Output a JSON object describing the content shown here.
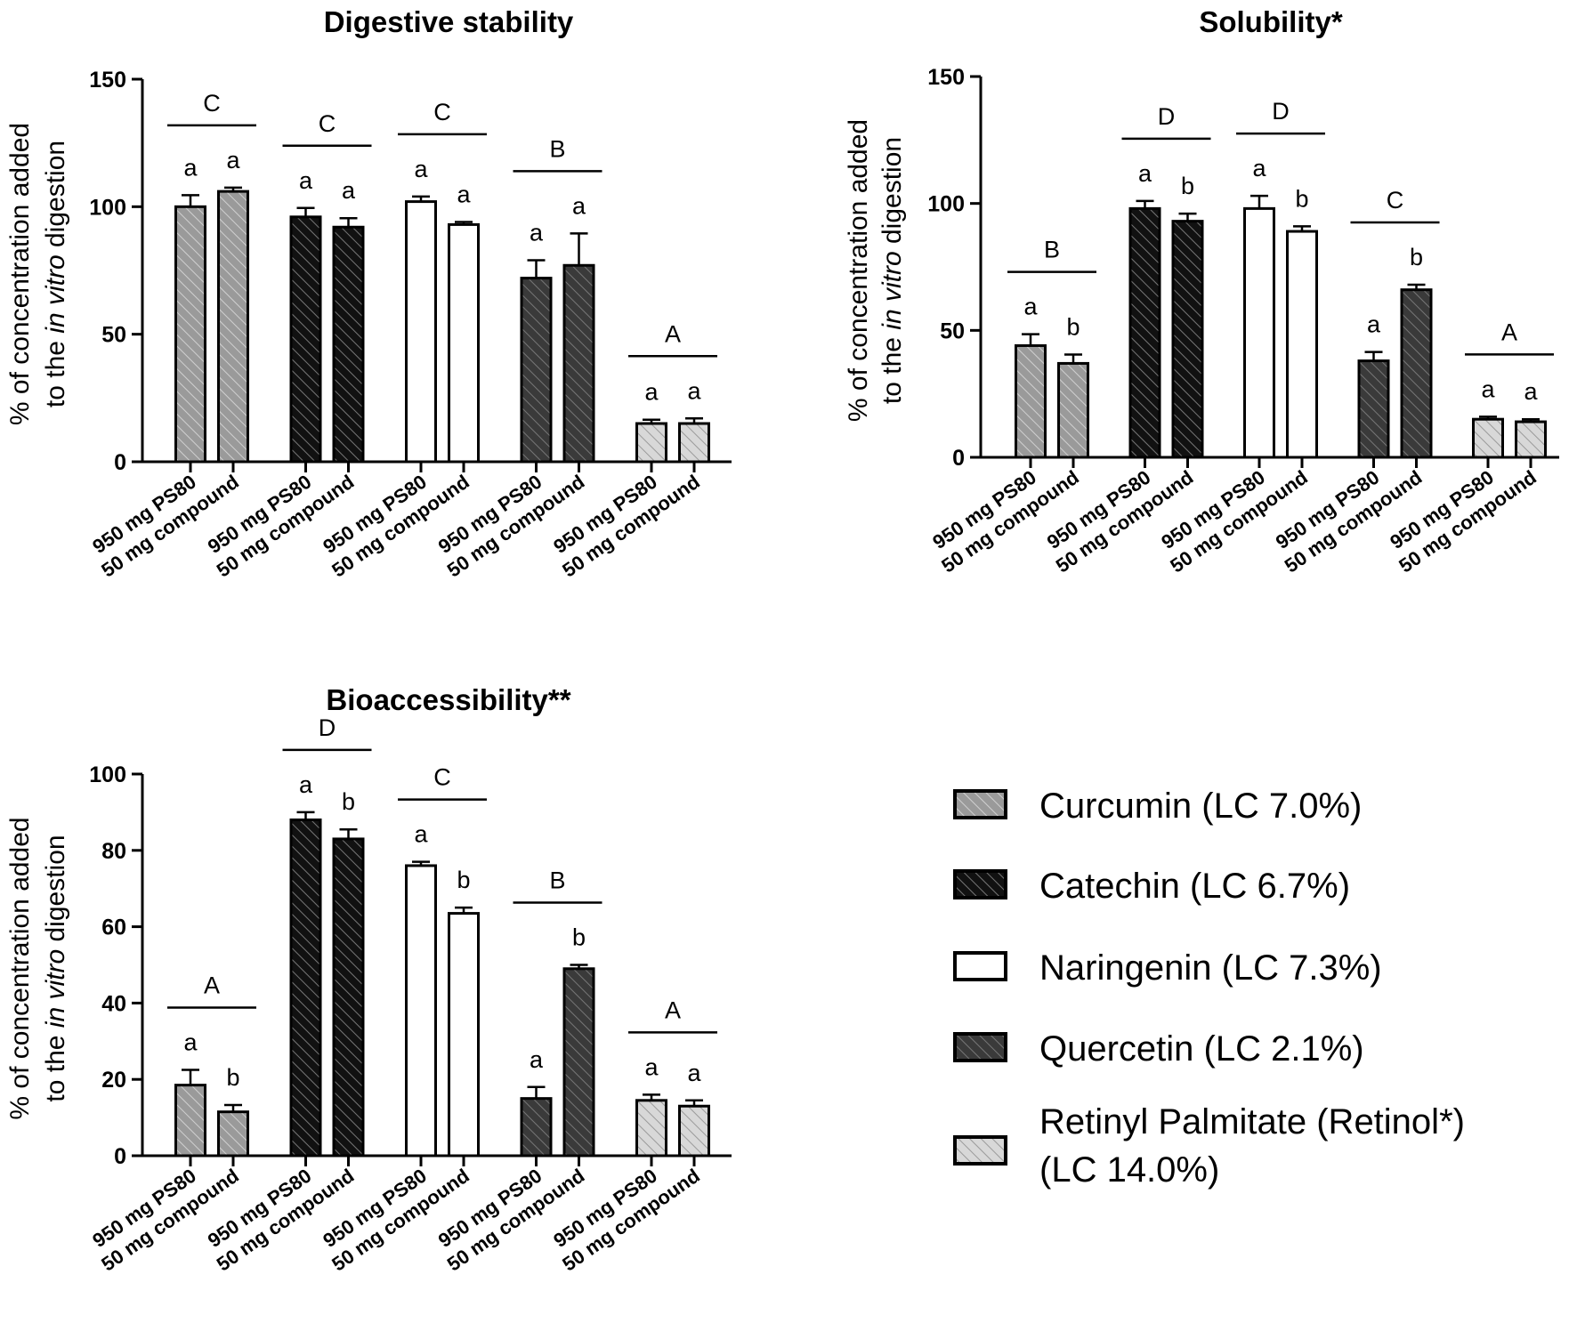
{
  "figure": {
    "legend": [
      {
        "label": "Curcumin (LC 7.0%)",
        "fill": "#9a9a9a",
        "hatch": true
      },
      {
        "label": "Catechin (LC 6.7%)",
        "fill": "#111111",
        "hatch": true
      },
      {
        "label": "Naringenin (LC 7.3%)",
        "fill": "#ffffff",
        "hatch": false
      },
      {
        "label": "Quercetin (LC 2.1%)",
        "fill": "#3a3a3a",
        "hatch": true
      },
      {
        "label": "Retinyl Palmitate (Retinol*)",
        "label2": "(LC 14.0%)",
        "fill": "#d8d8d8",
        "hatch": true
      }
    ]
  },
  "chart_data": [
    {
      "type": "bar",
      "title": "Digestive stability",
      "ylabel_parts": [
        "% of concentration added",
        "to the ",
        "in vitro",
        " digestion"
      ],
      "ylim": [
        0,
        150
      ],
      "yticks": [
        0,
        50,
        100,
        150
      ],
      "category_labels": [
        "950 mg PS80",
        "50 mg compound"
      ],
      "groups": [
        {
          "compound": "Curcumin",
          "values": [
            100,
            106
          ],
          "errors": [
            4.5,
            1.5
          ],
          "letters": [
            "a",
            "a"
          ],
          "group_letter": "C"
        },
        {
          "compound": "Catechin",
          "values": [
            96,
            92
          ],
          "errors": [
            3.5,
            3.5
          ],
          "letters": [
            "a",
            "a"
          ],
          "group_letter": "C"
        },
        {
          "compound": "Naringenin",
          "values": [
            102,
            93
          ],
          "errors": [
            2,
            1
          ],
          "letters": [
            "a",
            "a"
          ],
          "group_letter": "C"
        },
        {
          "compound": "Quercetin",
          "values": [
            72,
            77
          ],
          "errors": [
            7,
            12.5
          ],
          "letters": [
            "a",
            "a"
          ],
          "group_letter": "B"
        },
        {
          "compound": "Retinyl Palmitate",
          "values": [
            15,
            15
          ],
          "errors": [
            1.5,
            2
          ],
          "letters": [
            "a",
            "a"
          ],
          "group_letter": "A"
        }
      ]
    },
    {
      "type": "bar",
      "title": "Solubility*",
      "ylabel_parts": [
        "% of concentration added",
        "to the ",
        "in vitro",
        " digestion"
      ],
      "ylim": [
        0,
        150
      ],
      "yticks": [
        0,
        50,
        100,
        150
      ],
      "category_labels": [
        "950 mg PS80",
        "50 mg compound"
      ],
      "groups": [
        {
          "compound": "Curcumin",
          "values": [
            44,
            37
          ],
          "errors": [
            4.5,
            3.5
          ],
          "letters": [
            "a",
            "b"
          ],
          "group_letter": "B"
        },
        {
          "compound": "Catechin",
          "values": [
            98,
            93
          ],
          "errors": [
            3,
            3
          ],
          "letters": [
            "a",
            "b"
          ],
          "group_letter": "D"
        },
        {
          "compound": "Naringenin",
          "values": [
            98,
            89
          ],
          "errors": [
            5,
            2
          ],
          "letters": [
            "a",
            "b"
          ],
          "group_letter": "D"
        },
        {
          "compound": "Quercetin",
          "values": [
            38,
            66
          ],
          "errors": [
            3.5,
            2
          ],
          "letters": [
            "a",
            "b"
          ],
          "group_letter": "C"
        },
        {
          "compound": "Retinyl Palmitate",
          "values": [
            15,
            14
          ],
          "errors": [
            1,
            1
          ],
          "letters": [
            "a",
            "a"
          ],
          "group_letter": "A"
        }
      ]
    },
    {
      "type": "bar",
      "title": "Bioaccessibility**",
      "ylabel_parts": [
        "% of concentration added",
        "to the ",
        "in vitro",
        " digestion"
      ],
      "ylim": [
        0,
        100
      ],
      "yticks": [
        0,
        20,
        40,
        60,
        80,
        100
      ],
      "category_labels": [
        "950 mg PS80",
        "50 mg compound"
      ],
      "groups": [
        {
          "compound": "Curcumin",
          "values": [
            18.5,
            11.5
          ],
          "errors": [
            4,
            1.8
          ],
          "letters": [
            "a",
            "b"
          ],
          "group_letter": "A"
        },
        {
          "compound": "Catechin",
          "values": [
            88,
            83
          ],
          "errors": [
            2,
            2.5
          ],
          "letters": [
            "a",
            "b"
          ],
          "group_letter": "D"
        },
        {
          "compound": "Naringenin",
          "values": [
            76,
            63.5
          ],
          "errors": [
            1,
            1.5
          ],
          "letters": [
            "a",
            "b"
          ],
          "group_letter": "C"
        },
        {
          "compound": "Quercetin",
          "values": [
            15,
            49
          ],
          "errors": [
            3,
            1
          ],
          "letters": [
            "a",
            "b"
          ],
          "group_letter": "B"
        },
        {
          "compound": "Retinyl Palmitate",
          "values": [
            14.5,
            13
          ],
          "errors": [
            1.5,
            1.5
          ],
          "letters": [
            "a",
            "a"
          ],
          "group_letter": "A"
        }
      ]
    }
  ]
}
